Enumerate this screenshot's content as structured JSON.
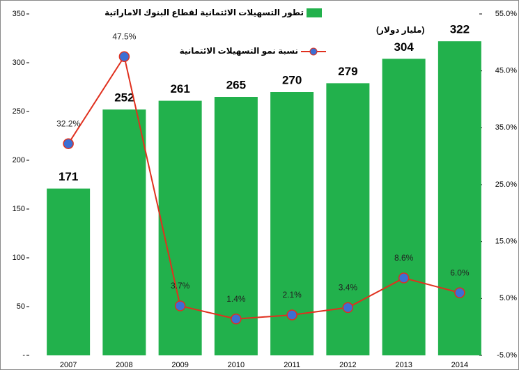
{
  "chart_data": {
    "type": "bar_line",
    "categories": [
      "2007",
      "2008",
      "2009",
      "2010",
      "2011",
      "2012",
      "2013",
      "2014"
    ],
    "series": [
      {
        "name": "تطور التسهيلات الائتمانية لقطاع البنوك الاماراتية",
        "color": "#22b14c",
        "values": [
          171,
          252,
          261,
          265,
          270,
          279,
          304,
          322
        ]
      },
      {
        "name": "نسبة نمو التسهيلات الائتمانية",
        "color": "#e0301e",
        "marker_color": "#3b6fd4",
        "axis": "y2",
        "values": [
          32.2,
          47.5,
          3.7,
          1.4,
          2.1,
          3.4,
          8.6,
          6.0
        ],
        "value_labels": [
          "32.2%",
          "47.5%",
          "3.7%",
          "1.4%",
          "2.1%",
          "3.4%",
          "8.6%",
          "6.0%"
        ]
      }
    ],
    "legend_note": "(مليار دولار)",
    "ylim": [
      0,
      350
    ],
    "yticks": [
      {
        "value": 0,
        "label": "-"
      },
      50,
      100,
      150,
      200,
      250,
      300,
      350
    ],
    "y2lim": [
      -5,
      55
    ],
    "y2ticks": [
      {
        "value": -5,
        "label": "-5.0%"
      },
      {
        "value": 5,
        "label": "5.0%"
      },
      {
        "value": 15,
        "label": "15.0%"
      },
      {
        "value": 25,
        "label": "25.0%"
      },
      {
        "value": 35,
        "label": "35.0%"
      },
      {
        "value": 45,
        "label": "45.0%"
      },
      {
        "value": 55,
        "label": "55.0%"
      }
    ]
  }
}
